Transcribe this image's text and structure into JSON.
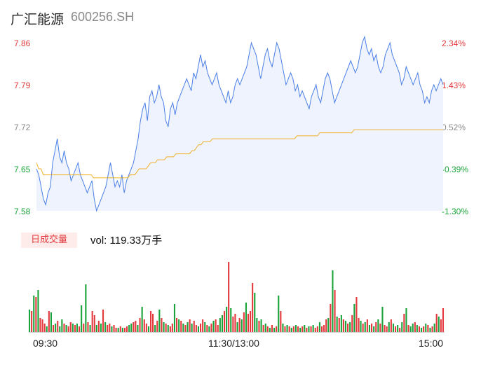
{
  "header": {
    "name": "广汇能源",
    "code": "600256.SH"
  },
  "colors": {
    "up": "#e4393c",
    "down": "#1aa33b",
    "flat": "#8a8a8a",
    "price_line": "#4a7fe6",
    "avg_line": "#f2b230"
  },
  "chart_data": {
    "type": "line",
    "y_price_ticks": [
      "7.86",
      "7.79",
      "7.72",
      "7.65",
      "7.58"
    ],
    "y_pct_ticks": [
      "2.34%",
      "1.43%",
      "0.52%",
      "-0.39%",
      "-1.30%"
    ],
    "ylim": [
      7.58,
      7.86
    ],
    "prev_close": 7.68,
    "x_ticks": [
      "09:30",
      "11:30/13:00",
      "15:00"
    ],
    "price": [
      7.65,
      7.64,
      7.62,
      7.6,
      7.59,
      7.61,
      7.62,
      7.66,
      7.68,
      7.7,
      7.67,
      7.66,
      7.68,
      7.66,
      7.65,
      7.63,
      7.64,
      7.65,
      7.66,
      7.64,
      7.63,
      7.62,
      7.61,
      7.62,
      7.63,
      7.6,
      7.58,
      7.59,
      7.6,
      7.61,
      7.62,
      7.64,
      7.66,
      7.64,
      7.62,
      7.63,
      7.62,
      7.64,
      7.61,
      7.63,
      7.64,
      7.65,
      7.66,
      7.68,
      7.7,
      7.73,
      7.75,
      7.76,
      7.73,
      7.77,
      7.78,
      7.76,
      7.77,
      7.79,
      7.77,
      7.76,
      7.73,
      7.72,
      7.75,
      7.76,
      7.74,
      7.76,
      7.77,
      7.78,
      7.79,
      7.8,
      7.79,
      7.78,
      7.81,
      7.8,
      7.82,
      7.84,
      7.82,
      7.83,
      7.81,
      7.8,
      7.79,
      7.8,
      7.81,
      7.79,
      7.78,
      7.77,
      7.76,
      7.78,
      7.76,
      7.77,
      7.79,
      7.8,
      7.79,
      7.8,
      7.81,
      7.82,
      7.84,
      7.86,
      7.85,
      7.84,
      7.82,
      7.8,
      7.82,
      7.84,
      7.85,
      7.83,
      7.82,
      7.84,
      7.86,
      7.85,
      7.83,
      7.81,
      7.79,
      7.8,
      7.81,
      7.8,
      7.78,
      7.79,
      7.77,
      7.78,
      7.77,
      7.76,
      7.75,
      7.77,
      7.78,
      7.79,
      7.77,
      7.76,
      7.78,
      7.8,
      7.81,
      7.8,
      7.78,
      7.76,
      7.77,
      7.78,
      7.79,
      7.8,
      7.81,
      7.82,
      7.83,
      7.82,
      7.81,
      7.82,
      7.84,
      7.86,
      7.87,
      7.85,
      7.84,
      7.85,
      7.83,
      7.84,
      7.82,
      7.81,
      7.82,
      7.84,
      7.85,
      7.86,
      7.84,
      7.83,
      7.82,
      7.81,
      7.79,
      7.8,
      7.82,
      7.81,
      7.8,
      7.79,
      7.8,
      7.81,
      7.79,
      7.78,
      7.76,
      7.77,
      7.76,
      7.78,
      7.79,
      7.78,
      7.79,
      7.8,
      7.79
    ],
    "avg": [
      7.66,
      7.65,
      7.65,
      7.64,
      7.64,
      7.64,
      7.64,
      7.64,
      7.64,
      7.64,
      7.64,
      7.64,
      7.64,
      7.64,
      7.64,
      7.64,
      7.64,
      7.64,
      7.64,
      7.64,
      7.64,
      7.64,
      7.64,
      7.64,
      7.64,
      7.635,
      7.635,
      7.635,
      7.635,
      7.635,
      7.635,
      7.635,
      7.635,
      7.635,
      7.635,
      7.635,
      7.635,
      7.635,
      7.635,
      7.635,
      7.635,
      7.64,
      7.64,
      7.64,
      7.645,
      7.65,
      7.65,
      7.65,
      7.65,
      7.655,
      7.66,
      7.66,
      7.66,
      7.665,
      7.665,
      7.665,
      7.665,
      7.67,
      7.67,
      7.67,
      7.67,
      7.675,
      7.675,
      7.675,
      7.675,
      7.675,
      7.675,
      7.675,
      7.68,
      7.68,
      7.685,
      7.69,
      7.69,
      7.695,
      7.695,
      7.695,
      7.695,
      7.7,
      7.7,
      7.7,
      7.7,
      7.7,
      7.7,
      7.7,
      7.7,
      7.7,
      7.7,
      7.7,
      7.7,
      7.7,
      7.7,
      7.7,
      7.7,
      7.7,
      7.7,
      7.7,
      7.7,
      7.7,
      7.7,
      7.7,
      7.7,
      7.7,
      7.7,
      7.7,
      7.7,
      7.7,
      7.7,
      7.7,
      7.7,
      7.7,
      7.7,
      7.7,
      7.7,
      7.7,
      7.705,
      7.705,
      7.705,
      7.705,
      7.705,
      7.705,
      7.705,
      7.705,
      7.705,
      7.705,
      7.71,
      7.71,
      7.71,
      7.71,
      7.71,
      7.71,
      7.71,
      7.71,
      7.71,
      7.71,
      7.71,
      7.71,
      7.71,
      7.71,
      7.71,
      7.715,
      7.715,
      7.715,
      7.715,
      7.715,
      7.715,
      7.715,
      7.715,
      7.715,
      7.715,
      7.715,
      7.715,
      7.715,
      7.715,
      7.715,
      7.715,
      7.715,
      7.715,
      7.715,
      7.715,
      7.715,
      7.715,
      7.715,
      7.715,
      7.715,
      7.715,
      7.715,
      7.715,
      7.715,
      7.715,
      7.715,
      7.715,
      7.715,
      7.715,
      7.715,
      7.715,
      7.715,
      7.715,
      7.715,
      7.715
    ],
    "volume_label": "日成交量",
    "volume_text": "vol: 119.33万手",
    "volume": [
      32,
      30,
      52,
      50,
      60,
      20,
      18,
      12,
      8,
      30,
      28,
      10,
      12,
      16,
      8,
      18,
      12,
      10,
      8,
      14,
      12,
      10,
      12,
      8,
      38,
      12,
      68,
      14,
      10,
      30,
      24,
      10,
      16,
      12,
      32,
      14,
      10,
      12,
      8,
      10,
      6,
      6,
      8,
      6,
      6,
      8,
      10,
      12,
      14,
      16,
      10,
      20,
      36,
      18,
      12,
      8,
      30,
      26,
      10,
      16,
      32,
      20,
      14,
      12,
      10,
      8,
      12,
      40,
      20,
      18,
      16,
      12,
      10,
      14,
      18,
      12,
      16,
      10,
      8,
      12,
      18,
      14,
      10,
      8,
      12,
      16,
      18,
      10,
      20,
      24,
      30,
      36,
      100,
      34,
      22,
      26,
      14,
      20,
      18,
      28,
      42,
      26,
      30,
      70,
      56,
      20,
      16,
      18,
      10,
      12,
      8,
      6,
      10,
      6,
      8,
      52,
      30,
      12,
      8,
      10,
      8,
      6,
      8,
      10,
      8,
      6,
      8,
      10,
      6,
      8,
      8,
      10,
      6,
      8,
      14,
      8,
      10,
      18,
      20,
      40,
      88,
      60,
      22,
      20,
      24,
      18,
      16,
      12,
      14,
      24,
      40,
      50,
      20,
      16,
      12,
      14,
      18,
      10,
      12,
      8,
      14,
      18,
      12,
      36,
      10,
      8,
      14,
      18,
      12,
      8,
      10,
      6,
      14,
      26,
      34,
      10,
      8,
      12,
      14,
      10,
      8,
      6,
      8,
      12,
      10,
      6,
      8,
      12,
      26,
      22,
      18,
      34
    ],
    "volume_dir": [
      "d",
      "u",
      "d",
      "u",
      "d",
      "u",
      "u",
      "u",
      "d",
      "u",
      "d",
      "u",
      "d",
      "u",
      "d",
      "d",
      "u",
      "d",
      "u",
      "u",
      "d",
      "u",
      "d",
      "u",
      "d",
      "u",
      "d",
      "u",
      "d",
      "u",
      "u",
      "d",
      "u",
      "d",
      "u",
      "d",
      "u",
      "u",
      "d",
      "u",
      "u",
      "d",
      "u",
      "d",
      "u",
      "u",
      "d",
      "d",
      "u",
      "u",
      "d",
      "u",
      "d",
      "u",
      "u",
      "d",
      "u",
      "u",
      "d",
      "u",
      "d",
      "u",
      "d",
      "u",
      "d",
      "u",
      "u",
      "d",
      "u",
      "d",
      "u",
      "d",
      "u",
      "d",
      "u",
      "d",
      "u",
      "u",
      "d",
      "u",
      "u",
      "d",
      "u",
      "d",
      "u",
      "d",
      "u",
      "u",
      "d",
      "d",
      "u",
      "d",
      "u",
      "d",
      "u",
      "u",
      "d",
      "u",
      "d",
      "u",
      "d",
      "u",
      "u",
      "u",
      "d",
      "d",
      "u",
      "d",
      "u",
      "d",
      "u",
      "d",
      "u",
      "d",
      "u",
      "d",
      "u",
      "d",
      "u",
      "d",
      "u",
      "d",
      "u",
      "d",
      "u",
      "d",
      "u",
      "d",
      "u",
      "d",
      "u",
      "d",
      "u",
      "u",
      "d",
      "u",
      "u",
      "u",
      "d",
      "u",
      "d",
      "u",
      "d",
      "u",
      "d",
      "u",
      "d",
      "u",
      "d",
      "u",
      "d",
      "u",
      "u",
      "d",
      "u",
      "d",
      "u",
      "d",
      "u",
      "d",
      "u",
      "d",
      "u",
      "d",
      "u",
      "u",
      "d",
      "u",
      "d",
      "u",
      "d",
      "u",
      "d",
      "u",
      "d",
      "u",
      "d",
      "d",
      "u",
      "d",
      "u",
      "d",
      "u",
      "d",
      "u",
      "d",
      "u",
      "d",
      "u",
      "d",
      "u",
      "u",
      "d",
      "u",
      "d",
      "u",
      "u",
      "u"
    ]
  }
}
